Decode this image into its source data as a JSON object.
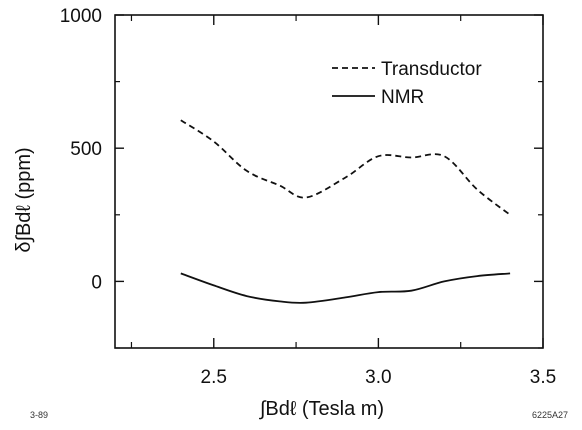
{
  "chart_data": {
    "type": "line",
    "xlabel": "∫Bdℓ (Tesla m)",
    "ylabel": "δ∫Bdℓ (ppm)",
    "xlim": [
      2.2,
      3.5
    ],
    "ylim": [
      -250,
      1000
    ],
    "xticks": [
      2.5,
      3.0,
      3.5
    ],
    "xtick_labels": [
      "2.5",
      "3.0",
      "3.5"
    ],
    "yticks": [
      0,
      500,
      1000
    ],
    "ytick_labels": [
      "0",
      "500",
      "1000"
    ],
    "grid": false,
    "legend_position": "top-right",
    "series": [
      {
        "name": "Transductor",
        "style": "dashed",
        "color": "#111111",
        "x": [
          2.4,
          2.5,
          2.6,
          2.7,
          2.78,
          2.9,
          3.0,
          3.1,
          3.2,
          3.3,
          3.4
        ],
        "y": [
          605,
          525,
          415,
          360,
          315,
          390,
          470,
          465,
          470,
          345,
          250
        ]
      },
      {
        "name": "NMR",
        "style": "solid",
        "color": "#111111",
        "x": [
          2.4,
          2.5,
          2.6,
          2.7,
          2.78,
          2.9,
          3.0,
          3.1,
          3.2,
          3.3,
          3.4
        ],
        "y": [
          30,
          -15,
          -55,
          -75,
          -80,
          -60,
          -40,
          -35,
          0,
          20,
          30
        ]
      }
    ]
  },
  "footnotes": {
    "left": "3-89",
    "right": "6225A27"
  }
}
